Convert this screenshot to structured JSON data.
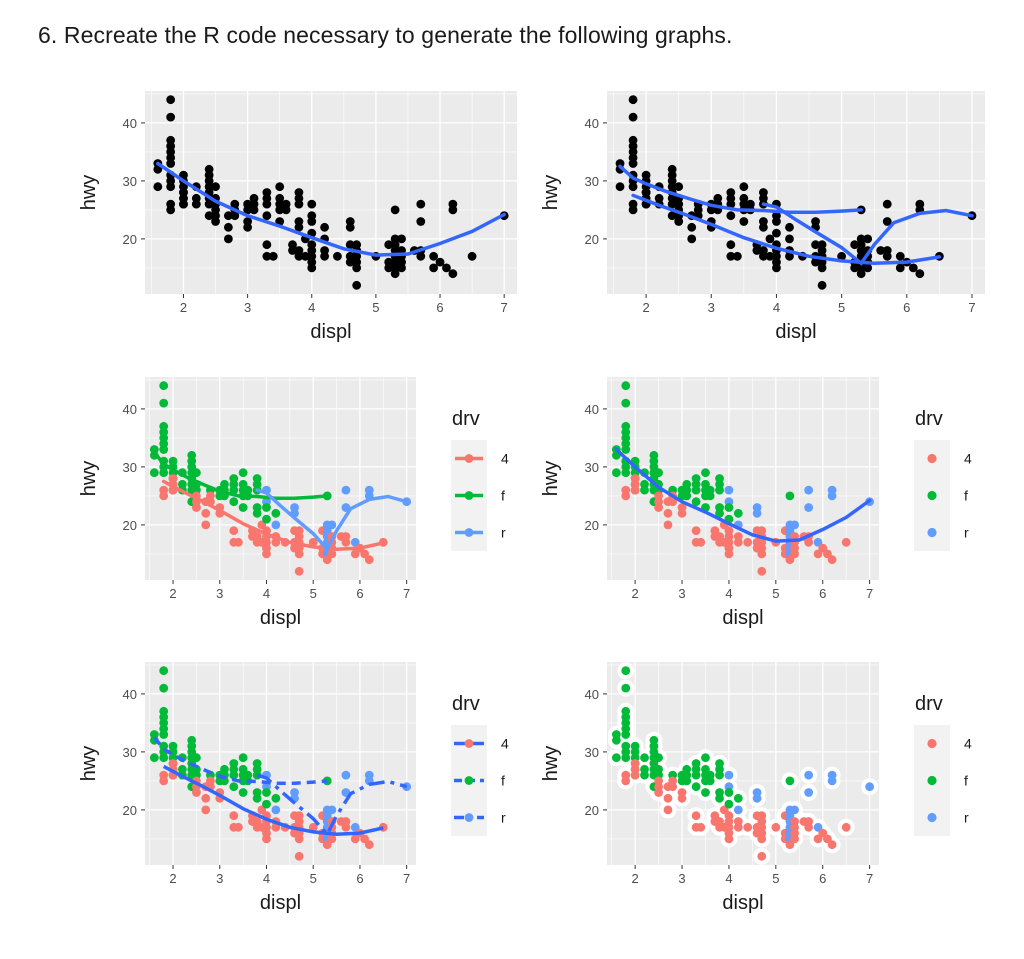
{
  "question": "6. Recreate the R code necessary to generate the following graphs.",
  "colors": {
    "panel_bg": "#ebebeb",
    "grid": "#ffffff",
    "point": "#000000",
    "smooth": "#3366ff",
    "drv_4": "#f8766d",
    "drv_f": "#00ba38",
    "drv_r": "#619cff",
    "legend_key_bg": "#f2f2f2"
  },
  "chart_data": {
    "shared": {
      "type": "scatter",
      "xlabel": "displ",
      "ylabel": "hwy",
      "xlim": [
        1.4,
        7.2
      ],
      "ylim": [
        10.5,
        45.5
      ],
      "x_ticks": [
        2,
        3,
        4,
        5,
        6,
        7
      ],
      "y_ticks": [
        20,
        30,
        40
      ],
      "points": [
        {
          "x": 1.6,
          "y": 33,
          "drv": "f"
        },
        {
          "x": 1.6,
          "y": 32,
          "drv": "f"
        },
        {
          "x": 1.6,
          "y": 29,
          "drv": "f"
        },
        {
          "x": 1.8,
          "y": 44,
          "drv": "f"
        },
        {
          "x": 1.8,
          "y": 41,
          "drv": "f"
        },
        {
          "x": 1.8,
          "y": 37,
          "drv": "f"
        },
        {
          "x": 1.8,
          "y": 36,
          "drv": "f"
        },
        {
          "x": 1.8,
          "y": 35,
          "drv": "f"
        },
        {
          "x": 1.8,
          "y": 34,
          "drv": "f"
        },
        {
          "x": 1.8,
          "y": 33,
          "drv": "f"
        },
        {
          "x": 1.8,
          "y": 31,
          "drv": "f"
        },
        {
          "x": 1.8,
          "y": 30,
          "drv": "f"
        },
        {
          "x": 1.8,
          "y": 29,
          "drv": "f"
        },
        {
          "x": 1.8,
          "y": 26,
          "drv": "4"
        },
        {
          "x": 1.8,
          "y": 25,
          "drv": "4"
        },
        {
          "x": 2.0,
          "y": 31,
          "drv": "f"
        },
        {
          "x": 2.0,
          "y": 30,
          "drv": "f"
        },
        {
          "x": 2.0,
          "y": 29,
          "drv": "f"
        },
        {
          "x": 2.0,
          "y": 28,
          "drv": "f"
        },
        {
          "x": 2.0,
          "y": 27,
          "drv": "f"
        },
        {
          "x": 2.0,
          "y": 26,
          "drv": "f"
        },
        {
          "x": 2.0,
          "y": 28,
          "drv": "4"
        },
        {
          "x": 2.0,
          "y": 27,
          "drv": "4"
        },
        {
          "x": 2.0,
          "y": 26,
          "drv": "4"
        },
        {
          "x": 2.2,
          "y": 29,
          "drv": "f"
        },
        {
          "x": 2.2,
          "y": 27,
          "drv": "f"
        },
        {
          "x": 2.2,
          "y": 26,
          "drv": "f"
        },
        {
          "x": 2.4,
          "y": 32,
          "drv": "f"
        },
        {
          "x": 2.4,
          "y": 31,
          "drv": "f"
        },
        {
          "x": 2.4,
          "y": 30,
          "drv": "f"
        },
        {
          "x": 2.4,
          "y": 29,
          "drv": "f"
        },
        {
          "x": 2.4,
          "y": 28,
          "drv": "f"
        },
        {
          "x": 2.4,
          "y": 27,
          "drv": "f"
        },
        {
          "x": 2.4,
          "y": 26,
          "drv": "f"
        },
        {
          "x": 2.4,
          "y": 24,
          "drv": "f"
        },
        {
          "x": 2.5,
          "y": 29,
          "drv": "f"
        },
        {
          "x": 2.5,
          "y": 27,
          "drv": "f"
        },
        {
          "x": 2.5,
          "y": 26,
          "drv": "f"
        },
        {
          "x": 2.5,
          "y": 25,
          "drv": "4"
        },
        {
          "x": 2.5,
          "y": 24,
          "drv": "4"
        },
        {
          "x": 2.5,
          "y": 23,
          "drv": "4"
        },
        {
          "x": 2.7,
          "y": 24,
          "drv": "4"
        },
        {
          "x": 2.7,
          "y": 22,
          "drv": "4"
        },
        {
          "x": 2.7,
          "y": 20,
          "drv": "4"
        },
        {
          "x": 2.8,
          "y": 26,
          "drv": "f"
        },
        {
          "x": 2.8,
          "y": 25,
          "drv": "4"
        },
        {
          "x": 2.8,
          "y": 24,
          "drv": "4"
        },
        {
          "x": 3.0,
          "y": 26,
          "drv": "f"
        },
        {
          "x": 3.0,
          "y": 25,
          "drv": "f"
        },
        {
          "x": 3.0,
          "y": 23,
          "drv": "4"
        },
        {
          "x": 3.0,
          "y": 22,
          "drv": "4"
        },
        {
          "x": 3.1,
          "y": 27,
          "drv": "f"
        },
        {
          "x": 3.1,
          "y": 26,
          "drv": "f"
        },
        {
          "x": 3.1,
          "y": 25,
          "drv": "f"
        },
        {
          "x": 3.3,
          "y": 28,
          "drv": "f"
        },
        {
          "x": 3.3,
          "y": 27,
          "drv": "f"
        },
        {
          "x": 3.3,
          "y": 26,
          "drv": "f"
        },
        {
          "x": 3.3,
          "y": 24,
          "drv": "f"
        },
        {
          "x": 3.3,
          "y": 19,
          "drv": "4"
        },
        {
          "x": 3.3,
          "y": 17,
          "drv": "4"
        },
        {
          "x": 3.4,
          "y": 17,
          "drv": "4"
        },
        {
          "x": 3.5,
          "y": 29,
          "drv": "f"
        },
        {
          "x": 3.5,
          "y": 27,
          "drv": "f"
        },
        {
          "x": 3.5,
          "y": 26,
          "drv": "f"
        },
        {
          "x": 3.5,
          "y": 25,
          "drv": "f"
        },
        {
          "x": 3.5,
          "y": 23,
          "drv": "f"
        },
        {
          "x": 3.6,
          "y": 26,
          "drv": "f"
        },
        {
          "x": 3.6,
          "y": 25,
          "drv": "f"
        },
        {
          "x": 3.7,
          "y": 19,
          "drv": "4"
        },
        {
          "x": 3.7,
          "y": 18,
          "drv": "4"
        },
        {
          "x": 3.8,
          "y": 28,
          "drv": "f"
        },
        {
          "x": 3.8,
          "y": 27,
          "drv": "f"
        },
        {
          "x": 3.8,
          "y": 26,
          "drv": "f"
        },
        {
          "x": 3.8,
          "y": 23,
          "drv": "f"
        },
        {
          "x": 3.8,
          "y": 22,
          "drv": "f"
        },
        {
          "x": 3.8,
          "y": 18,
          "drv": "4"
        },
        {
          "x": 3.8,
          "y": 17,
          "drv": "4"
        },
        {
          "x": 3.9,
          "y": 20,
          "drv": "4"
        },
        {
          "x": 3.9,
          "y": 17,
          "drv": "4"
        },
        {
          "x": 4.0,
          "y": 26,
          "drv": "r"
        },
        {
          "x": 4.0,
          "y": 24,
          "drv": "r"
        },
        {
          "x": 4.0,
          "y": 23,
          "drv": "f"
        },
        {
          "x": 4.0,
          "y": 21,
          "drv": "f"
        },
        {
          "x": 4.0,
          "y": 19,
          "drv": "4"
        },
        {
          "x": 4.0,
          "y": 18,
          "drv": "4"
        },
        {
          "x": 4.0,
          "y": 17,
          "drv": "4"
        },
        {
          "x": 4.0,
          "y": 16,
          "drv": "4"
        },
        {
          "x": 4.0,
          "y": 15,
          "drv": "4"
        },
        {
          "x": 4.2,
          "y": 22,
          "drv": "f"
        },
        {
          "x": 4.2,
          "y": 20,
          "drv": "r"
        },
        {
          "x": 4.2,
          "y": 18,
          "drv": "4"
        },
        {
          "x": 4.2,
          "y": 17,
          "drv": "4"
        },
        {
          "x": 4.4,
          "y": 17,
          "drv": "4"
        },
        {
          "x": 4.6,
          "y": 23,
          "drv": "r"
        },
        {
          "x": 4.6,
          "y": 22,
          "drv": "r"
        },
        {
          "x": 4.6,
          "y": 19,
          "drv": "4"
        },
        {
          "x": 4.6,
          "y": 17,
          "drv": "4"
        },
        {
          "x": 4.6,
          "y": 16,
          "drv": "4"
        },
        {
          "x": 4.7,
          "y": 19,
          "drv": "4"
        },
        {
          "x": 4.7,
          "y": 18,
          "drv": "4"
        },
        {
          "x": 4.7,
          "y": 17,
          "drv": "4"
        },
        {
          "x": 4.7,
          "y": 16,
          "drv": "4"
        },
        {
          "x": 4.7,
          "y": 15,
          "drv": "4"
        },
        {
          "x": 4.7,
          "y": 12,
          "drv": "4"
        },
        {
          "x": 5.0,
          "y": 17,
          "drv": "4"
        },
        {
          "x": 5.2,
          "y": 19,
          "drv": "4"
        },
        {
          "x": 5.2,
          "y": 16,
          "drv": "4"
        },
        {
          "x": 5.2,
          "y": 15,
          "drv": "4"
        },
        {
          "x": 5.3,
          "y": 25,
          "drv": "f"
        },
        {
          "x": 5.3,
          "y": 20,
          "drv": "r"
        },
        {
          "x": 5.3,
          "y": 19,
          "drv": "r"
        },
        {
          "x": 5.3,
          "y": 18,
          "drv": "r"
        },
        {
          "x": 5.3,
          "y": 17,
          "drv": "r"
        },
        {
          "x": 5.3,
          "y": 16,
          "drv": "r"
        },
        {
          "x": 5.3,
          "y": 15,
          "drv": "r"
        },
        {
          "x": 5.3,
          "y": 14,
          "drv": "4"
        },
        {
          "x": 5.4,
          "y": 20,
          "drv": "r"
        },
        {
          "x": 5.4,
          "y": 18,
          "drv": "4"
        },
        {
          "x": 5.4,
          "y": 17,
          "drv": "4"
        },
        {
          "x": 5.4,
          "y": 16,
          "drv": "4"
        },
        {
          "x": 5.4,
          "y": 15,
          "drv": "4"
        },
        {
          "x": 5.6,
          "y": 18,
          "drv": "4"
        },
        {
          "x": 5.7,
          "y": 26,
          "drv": "r"
        },
        {
          "x": 5.7,
          "y": 23,
          "drv": "r"
        },
        {
          "x": 5.7,
          "y": 18,
          "drv": "4"
        },
        {
          "x": 5.7,
          "y": 17,
          "drv": "4"
        },
        {
          "x": 5.9,
          "y": 17,
          "drv": "r"
        },
        {
          "x": 5.9,
          "y": 15,
          "drv": "4"
        },
        {
          "x": 6.1,
          "y": 15,
          "drv": "4"
        },
        {
          "x": 6.2,
          "y": 26,
          "drv": "r"
        },
        {
          "x": 6.2,
          "y": 25,
          "drv": "r"
        },
        {
          "x": 6.5,
          "y": 17,
          "drv": "4"
        },
        {
          "x": 7.0,
          "y": 24,
          "drv": "r"
        },
        {
          "x": 6.0,
          "y": 16,
          "drv": "4"
        },
        {
          "x": 6.2,
          "y": 14,
          "drv": "4"
        }
      ],
      "smooth_all": [
        [
          1.6,
          33
        ],
        [
          2.0,
          30
        ],
        [
          2.5,
          26.5
        ],
        [
          3.0,
          24
        ],
        [
          3.5,
          22.2
        ],
        [
          4.0,
          20.2
        ],
        [
          4.5,
          18.3
        ],
        [
          5.0,
          17.2
        ],
        [
          5.5,
          17.4
        ],
        [
          6.0,
          19.2
        ],
        [
          6.5,
          21.3
        ],
        [
          7.0,
          24.2
        ]
      ],
      "smooth_by_drv": {
        "4": [
          [
            1.8,
            27.5
          ],
          [
            2.2,
            25.8
          ],
          [
            2.6,
            24.2
          ],
          [
            3.0,
            22.5
          ],
          [
            3.5,
            20.2
          ],
          [
            4.0,
            18.4
          ],
          [
            4.5,
            17.0
          ],
          [
            5.0,
            16.2
          ],
          [
            5.5,
            15.8
          ],
          [
            6.0,
            16.0
          ],
          [
            6.5,
            16.9
          ]
        ],
        "f": [
          [
            1.6,
            32.5
          ],
          [
            1.8,
            30.5
          ],
          [
            2.0,
            29.5
          ],
          [
            2.3,
            28.2
          ],
          [
            2.7,
            26.8
          ],
          [
            3.0,
            25.8
          ],
          [
            3.4,
            25.0
          ],
          [
            3.8,
            24.9
          ],
          [
            4.2,
            24.6
          ],
          [
            4.6,
            24.6
          ],
          [
            5.0,
            24.8
          ],
          [
            5.3,
            25
          ]
        ],
        "r": [
          [
            3.8,
            26
          ],
          [
            4.0,
            25.5
          ],
          [
            4.3,
            23.3
          ],
          [
            4.6,
            21.2
          ],
          [
            5.0,
            18.5
          ],
          [
            5.3,
            15.8
          ],
          [
            5.5,
            19
          ],
          [
            5.8,
            22.8
          ],
          [
            6.2,
            24.4
          ],
          [
            6.6,
            24.9
          ],
          [
            7.0,
            24
          ]
        ]
      }
    },
    "plots": [
      {
        "id": "p1",
        "type": "scatter",
        "mode": "black",
        "smooth": "single",
        "legend": false,
        "xlabel": "displ",
        "ylabel": "hwy",
        "x_ticks": [
          "2",
          "3",
          "4",
          "5",
          "6",
          "7"
        ],
        "y_ticks": [
          "20",
          "30",
          "40"
        ]
      },
      {
        "id": "p2",
        "type": "scatter",
        "mode": "black",
        "smooth": "group",
        "legend": false,
        "xlabel": "displ",
        "ylabel": "hwy",
        "x_ticks": [
          "2",
          "3",
          "4",
          "5",
          "6",
          "7"
        ],
        "y_ticks": [
          "20",
          "30",
          "40"
        ]
      },
      {
        "id": "p3",
        "type": "scatter",
        "mode": "color",
        "smooth": "group-color",
        "legend": true,
        "legend_kind": "line-point",
        "xlabel": "displ",
        "ylabel": "hwy",
        "x_ticks": [
          "2",
          "3",
          "4",
          "5",
          "6",
          "7"
        ],
        "y_ticks": [
          "20",
          "30",
          "40"
        ]
      },
      {
        "id": "p4",
        "type": "scatter",
        "mode": "color",
        "smooth": "single",
        "legend": true,
        "legend_kind": "point",
        "xlabel": "displ",
        "ylabel": "hwy",
        "x_ticks": [
          "2",
          "3",
          "4",
          "5",
          "6",
          "7"
        ],
        "y_ticks": [
          "20",
          "30",
          "40"
        ]
      },
      {
        "id": "p5",
        "type": "scatter",
        "mode": "color",
        "smooth": "linetype",
        "legend": true,
        "legend_kind": "linetype",
        "xlabel": "displ",
        "ylabel": "hwy",
        "x_ticks": [
          "2",
          "3",
          "4",
          "5",
          "6",
          "7"
        ],
        "y_ticks": [
          "20",
          "30",
          "40"
        ]
      },
      {
        "id": "p6",
        "type": "scatter",
        "mode": "color-outline",
        "smooth": "none",
        "legend": true,
        "legend_kind": "point",
        "xlabel": "displ",
        "ylabel": "hwy",
        "x_ticks": [
          "2",
          "3",
          "4",
          "5",
          "6",
          "7"
        ],
        "y_ticks": [
          "20",
          "30",
          "40"
        ]
      }
    ],
    "legend": {
      "title": "drv",
      "entries": [
        "4",
        "f",
        "r"
      ]
    }
  }
}
